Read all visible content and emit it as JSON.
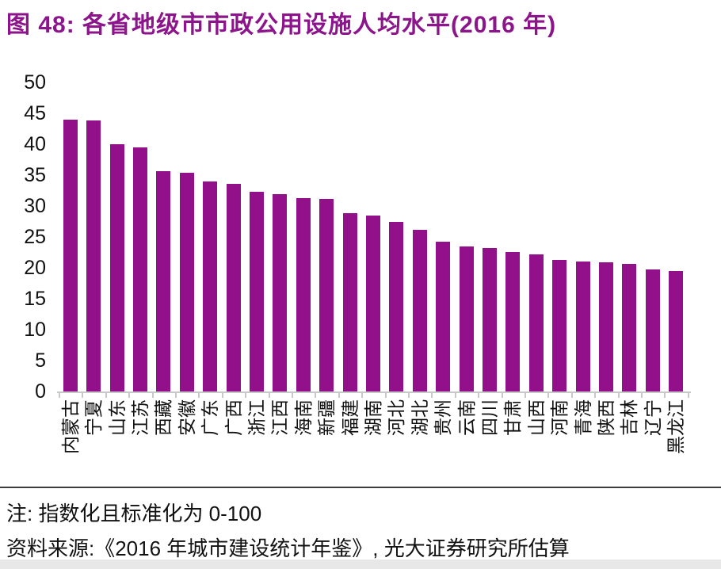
{
  "figure": {
    "title": "图 48: 各省地级市市政公用设施人均水平(2016 年)",
    "note": "注: 指数化且标准化为 0-100",
    "source": "资料来源:《2016 年城市建设统计年鉴》, 光大证券研究所估算"
  },
  "colors": {
    "bar": "#92118A",
    "title_text": "#8C158C",
    "axis_line": "#C9C9C9",
    "body_text": "#111111",
    "separator": "#3D3D3D",
    "bottom_strip": "#E8E8E8"
  },
  "chart_data": {
    "type": "bar",
    "title": "各省地级市市政公用设施人均水平(2016 年)",
    "categories": [
      "内蒙古",
      "宁夏",
      "山东",
      "江苏",
      "西藏",
      "安徽",
      "广东",
      "广西",
      "浙江",
      "江西",
      "海南",
      "新疆",
      "福建",
      "湖南",
      "河北",
      "湖北",
      "贵州",
      "云南",
      "四川",
      "甘肃",
      "山西",
      "河南",
      "青海",
      "陕西",
      "吉林",
      "辽宁",
      "黑龙江"
    ],
    "values": [
      44.0,
      43.9,
      40.0,
      39.5,
      35.6,
      35.4,
      34.0,
      33.6,
      32.3,
      31.9,
      31.3,
      31.1,
      28.9,
      28.4,
      27.4,
      26.2,
      24.2,
      23.5,
      23.2,
      22.6,
      22.2,
      21.3,
      21.0,
      20.9,
      20.7,
      19.7,
      19.5
    ],
    "xlabel": "",
    "ylabel": "",
    "ylim": [
      0,
      50
    ],
    "yticks": [
      0,
      5,
      10,
      15,
      20,
      25,
      30,
      35,
      40,
      45,
      50
    ],
    "grid": false,
    "legend": false,
    "bar_color": "#92118A",
    "x_label_rotation": -90
  }
}
